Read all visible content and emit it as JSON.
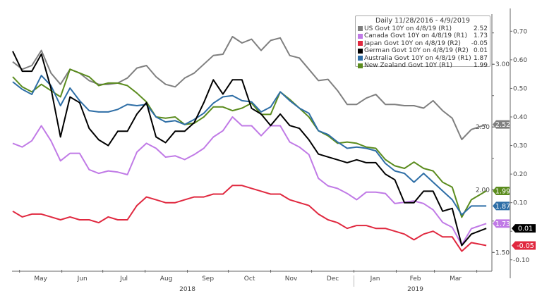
{
  "chart_data": {
    "type": "line",
    "legend": {
      "title": "Daily 11/28/2016 - 4/9/2019",
      "placement": "top-right"
    },
    "x": [
      "2018-04-26",
      "2018-05-03",
      "2018-05-10",
      "2018-05-17",
      "2018-05-24",
      "2018-05-31",
      "2018-06-07",
      "2018-06-14",
      "2018-06-21",
      "2018-06-28",
      "2018-07-05",
      "2018-07-12",
      "2018-07-19",
      "2018-07-26",
      "2018-08-02",
      "2018-08-09",
      "2018-08-16",
      "2018-08-23",
      "2018-08-30",
      "2018-09-06",
      "2018-09-13",
      "2018-09-20",
      "2018-09-27",
      "2018-10-04",
      "2018-10-11",
      "2018-10-18",
      "2018-10-25",
      "2018-11-01",
      "2018-11-08",
      "2018-11-15",
      "2018-11-22",
      "2018-11-29",
      "2018-12-06",
      "2018-12-13",
      "2018-12-20",
      "2018-12-27",
      "2019-01-03",
      "2019-01-10",
      "2019-01-17",
      "2019-01-24",
      "2019-01-31",
      "2019-02-07",
      "2019-02-14",
      "2019-02-21",
      "2019-02-28",
      "2019-03-07",
      "2019-03-14",
      "2019-03-21",
      "2019-03-28",
      "2019-04-08"
    ],
    "x_ticks": [
      {
        "date": "2018-05-01",
        "label": "May"
      },
      {
        "date": "2018-06-01",
        "label": "Jun"
      },
      {
        "date": "2018-07-01",
        "label": "Jul"
      },
      {
        "date": "2018-08-01",
        "label": "Aug"
      },
      {
        "date": "2018-09-01",
        "label": "Sep"
      },
      {
        "date": "2018-10-01",
        "label": "Oct"
      },
      {
        "date": "2018-11-01",
        "label": "Nov"
      },
      {
        "date": "2018-12-01",
        "label": "Dec"
      },
      {
        "date": "2019-01-01",
        "label": "Jan"
      },
      {
        "date": "2019-02-01",
        "label": "Feb"
      },
      {
        "date": "2019-03-01",
        "label": "Mar"
      },
      {
        "date": "2019-04-01",
        "label": ""
      }
    ],
    "years": [
      {
        "label": "2018",
        "date": "2018-09-01"
      },
      {
        "label": "2019",
        "date": "2019-02-15"
      }
    ],
    "xlim": [
      "2018-04-26",
      "2019-04-10"
    ],
    "axes": {
      "R1": {
        "ylim": [
          1.35,
          3.4
        ],
        "tick_labels": [
          "3.00",
          "2.50",
          "2.00",
          "1.50"
        ],
        "ticks": [
          3.25,
          3.0,
          2.75,
          2.5,
          2.25,
          2.0,
          1.75,
          1.5
        ]
      },
      "R2": {
        "ylim": [
          -0.14,
          0.76
        ],
        "tick_labels": [
          "0.70",
          "0.60",
          "0.50",
          "0.40",
          "0.30",
          "0.20",
          "0.10",
          "-0.10"
        ],
        "ticks": [
          0.7,
          0.6,
          0.5,
          0.4,
          0.3,
          0.2,
          0.1,
          0.0,
          -0.1
        ]
      }
    },
    "grid": false,
    "series": [
      {
        "name": "US Govt 10Y on 4/8/19 (R1)",
        "value": "2.52",
        "axis": "R1",
        "color": "#7f7f7f",
        "values": [
          3.02,
          2.96,
          2.99,
          3.11,
          2.93,
          2.84,
          2.96,
          2.93,
          2.87,
          2.84,
          2.84,
          2.85,
          2.89,
          2.97,
          2.99,
          2.9,
          2.84,
          2.82,
          2.89,
          2.93,
          3.0,
          3.07,
          3.08,
          3.22,
          3.17,
          3.2,
          3.11,
          3.19,
          3.21,
          3.07,
          3.05,
          2.96,
          2.87,
          2.88,
          2.79,
          2.68,
          2.68,
          2.73,
          2.76,
          2.68,
          2.68,
          2.67,
          2.67,
          2.65,
          2.71,
          2.63,
          2.57,
          2.4,
          2.48,
          2.52
        ]
      },
      {
        "name": "Canada Govt 10Y on 4/8/19 (R1)",
        "value": "1.73",
        "axis": "R1",
        "color": "#c07ae6",
        "values": [
          2.37,
          2.34,
          2.39,
          2.51,
          2.39,
          2.23,
          2.29,
          2.29,
          2.16,
          2.13,
          2.15,
          2.14,
          2.12,
          2.3,
          2.37,
          2.33,
          2.26,
          2.27,
          2.24,
          2.28,
          2.33,
          2.42,
          2.47,
          2.58,
          2.51,
          2.51,
          2.43,
          2.51,
          2.51,
          2.38,
          2.34,
          2.28,
          2.09,
          2.03,
          2.01,
          1.97,
          1.92,
          1.98,
          1.98,
          1.97,
          1.89,
          1.9,
          1.91,
          1.89,
          1.84,
          1.74,
          1.7,
          1.56,
          1.69,
          1.73
        ]
      },
      {
        "name": "Japan Govt 10Y on 4/8/19 (R2)",
        "value": "-0.05",
        "axis": "R2",
        "color": "#e0283f",
        "values": [
          0.07,
          0.05,
          0.06,
          0.06,
          0.05,
          0.04,
          0.05,
          0.04,
          0.04,
          0.03,
          0.05,
          0.04,
          0.04,
          0.09,
          0.12,
          0.11,
          0.1,
          0.1,
          0.11,
          0.12,
          0.12,
          0.13,
          0.13,
          0.16,
          0.16,
          0.15,
          0.14,
          0.13,
          0.13,
          0.11,
          0.1,
          0.09,
          0.06,
          0.04,
          0.03,
          0.01,
          0.02,
          0.02,
          0.01,
          0.01,
          0.0,
          -0.01,
          -0.03,
          -0.01,
          0.0,
          -0.02,
          -0.02,
          -0.07,
          -0.04,
          -0.05
        ]
      },
      {
        "name": "German Govt 10Y on 4/8/19 (R2)",
        "value": "0.01",
        "axis": "R2",
        "color": "#000000",
        "values": [
          0.63,
          0.56,
          0.56,
          0.62,
          0.5,
          0.33,
          0.47,
          0.45,
          0.36,
          0.32,
          0.3,
          0.35,
          0.35,
          0.41,
          0.45,
          0.33,
          0.31,
          0.35,
          0.35,
          0.38,
          0.45,
          0.53,
          0.48,
          0.53,
          0.53,
          0.43,
          0.41,
          0.37,
          0.41,
          0.37,
          0.36,
          0.32,
          0.27,
          0.26,
          0.25,
          0.24,
          0.25,
          0.24,
          0.24,
          0.2,
          0.18,
          0.1,
          0.1,
          0.14,
          0.14,
          0.07,
          0.08,
          -0.05,
          -0.01,
          0.01
        ]
      },
      {
        "name": "Australia Govt 10Y on 4/8/19 (R1)",
        "value": "1.87",
        "axis": "R1",
        "color": "#2e6ea6",
        "values": [
          2.86,
          2.8,
          2.76,
          2.91,
          2.83,
          2.67,
          2.81,
          2.71,
          2.63,
          2.62,
          2.62,
          2.64,
          2.68,
          2.67,
          2.68,
          2.58,
          2.54,
          2.55,
          2.52,
          2.56,
          2.61,
          2.69,
          2.74,
          2.75,
          2.71,
          2.7,
          2.62,
          2.66,
          2.78,
          2.71,
          2.65,
          2.61,
          2.47,
          2.44,
          2.38,
          2.33,
          2.34,
          2.33,
          2.31,
          2.21,
          2.15,
          2.13,
          2.06,
          2.13,
          2.06,
          1.99,
          1.92,
          1.8,
          1.87,
          1.87
        ]
      },
      {
        "name": "New Zealand Govt 10Y (R1)",
        "value": "1.99",
        "axis": "R1",
        "color": "#5b8c1e",
        "values": [
          2.9,
          2.82,
          2.78,
          2.84,
          2.79,
          2.74,
          2.96,
          2.93,
          2.9,
          2.83,
          2.85,
          2.85,
          2.83,
          2.77,
          2.7,
          2.58,
          2.57,
          2.58,
          2.52,
          2.53,
          2.58,
          2.66,
          2.66,
          2.63,
          2.65,
          2.69,
          2.6,
          2.6,
          2.78,
          2.72,
          2.65,
          2.58,
          2.47,
          2.43,
          2.37,
          2.38,
          2.37,
          2.34,
          2.33,
          2.24,
          2.19,
          2.17,
          2.22,
          2.17,
          2.15,
          2.06,
          2.02,
          1.78,
          1.92,
          1.99
        ]
      }
    ]
  }
}
